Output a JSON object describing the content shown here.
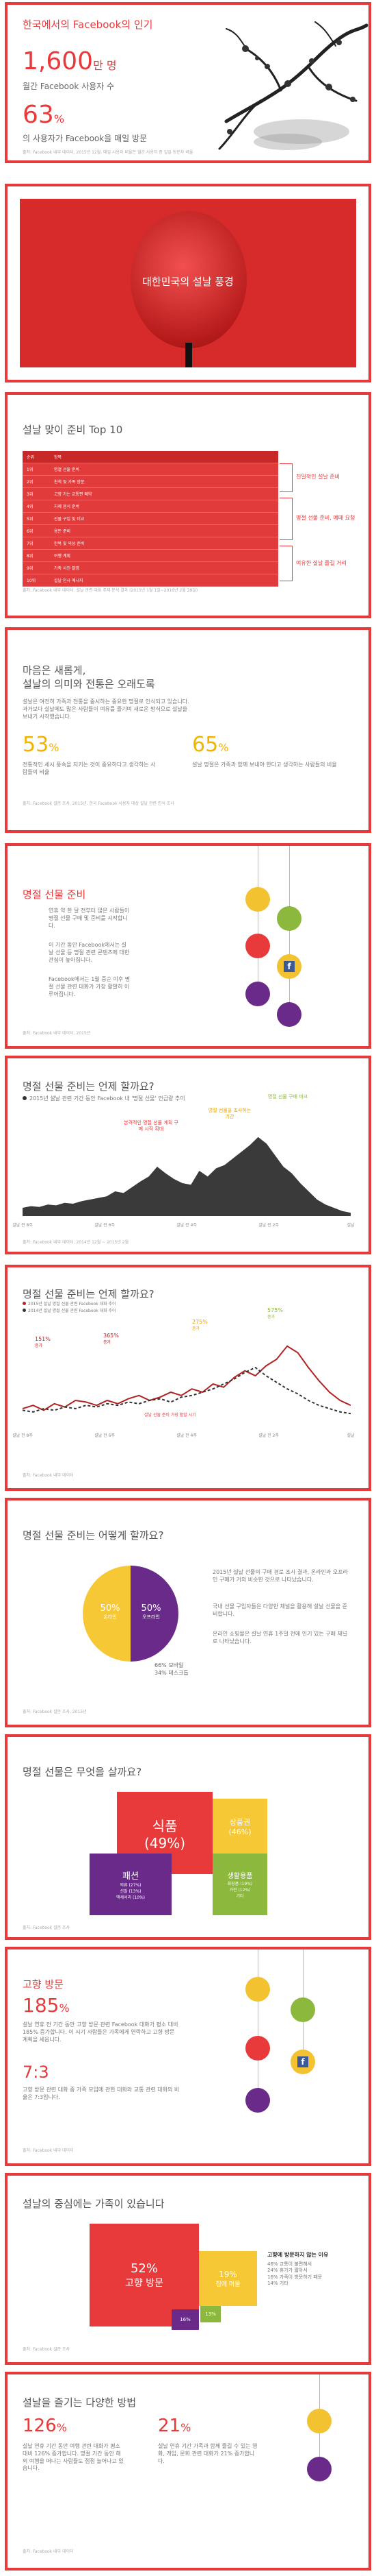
{
  "p1": {
    "title": "한국에서의 Facebook의 인기",
    "stat1_num": "1,600",
    "stat1_unit": "만 명",
    "stat1_label": "월간 Facebook 사용자 수",
    "stat2_num": "63",
    "stat2_unit": "%",
    "stat2_label": "의 사용자가 Facebook을 매일 방문",
    "source": "출처: Facebook 내부 데이터, 2015년 12월. 매일 사용자 비율은 월간 사용자 중 일일 방문자 비율"
  },
  "p2": {
    "title": "대한민국의 설날 풍경"
  },
  "p3": {
    "title": "설날 맞이 준비 Top 10",
    "head": [
      "순위",
      "항목"
    ],
    "rows": [
      [
        "1위",
        "명절 선물 준비"
      ],
      [
        "2위",
        "친척 및 가족 방문"
      ],
      [
        "3위",
        "고향 가는 교통편 예약"
      ],
      [
        "4위",
        "차례 음식 준비"
      ],
      [
        "5위",
        "선물 구입 및 비교"
      ],
      [
        "6위",
        "용돈 준비"
      ],
      [
        "7위",
        "한복 및 의상 준비"
      ],
      [
        "8위",
        "여행 계획"
      ],
      [
        "9위",
        "가족 사진 촬영"
      ],
      [
        "10위",
        "설날 인사 메시지"
      ]
    ],
    "tags": [
      "친밀적인 설날 준비",
      "명절 선물 준비, 예매 요청",
      "여유한 설날 즐길 거리"
    ],
    "source": "출처: Facebook 내부 데이터. 설날 관련 대화 주제 분석 결과 (2015년 1월 1일~2016년 2월 28일)"
  },
  "p4": {
    "title1": "마음은 새롭게,",
    "title2": "설날의 의미와 전통은 오래도록",
    "body": "설날은 여전히 가족과 전통을 중시하는 중요한 명절로 인식되고 있습니다. 과거보다 설날에도 많은 사람들이 여유를 즐기며 새로운 방식으로 설날을 보내기 시작했습니다.",
    "stat1_num": "53",
    "stat1_unit": "%",
    "stat1_label": "전통적인 세시 풍속을 지키는 것이 중요하다고 생각하는 사람들의 비율",
    "stat2_num": "65",
    "stat2_unit": "%",
    "stat2_label": "설날 명절은 가족과 함께 보내야 한다고 생각하는 사람들의 비율",
    "source": "출처: Facebook 설문 조사, 2015년. 한국 Facebook 사용자 대상 설날 관련 인식 조사"
  },
  "p5": {
    "title": "명절 선물 준비",
    "body1": "연휴 약 한 달 전부터 많은 사람들이 명절 선물 구매 및 준비를 시작합니다.",
    "body2": "이 기간 동안 Facebook에서는 설날 선물 등 명절 관련 콘텐츠에 대한 관심이 높아집니다.",
    "body3": "Facebook에서는 1월 중순 이후 명절 선물 관련 대화가 가장 활발히 이루어집니다.",
    "source": "출처: Facebook 내부 데이터, 2015년"
  },
  "p6": {
    "title": "명절 선물 준비는 언제 할까요?",
    "legend": "2015년 설날 관련 기간 동안 Facebook 내 '명절 선물' 언급량 추이",
    "ann1": "본격적인 명절 선물 계획 구매 시작 확대",
    "ann2": "명절 선물을 조사하는 기간",
    "ann3": "명절 선물 구매 피크",
    "chart_data": {
      "type": "area",
      "y": [
        10,
        12,
        11,
        14,
        13,
        16,
        15,
        18,
        20,
        22,
        24,
        30,
        28,
        35,
        42,
        48,
        60,
        52,
        45,
        40,
        38,
        55,
        48,
        58,
        62,
        70,
        78,
        86,
        96,
        88,
        74,
        60,
        52,
        40,
        30,
        20,
        14,
        10,
        6,
        4
      ],
      "ticks": [
        "설날 전 8주",
        "설날 전 6주",
        "설날 전 4주",
        "설날 전 2주",
        "설날"
      ]
    },
    "source": "출처: Facebook 내부 데이터, 2014년 12월 ~ 2015년 2월"
  },
  "p7": {
    "title": "명절 선물 준비는 언제 할까요?",
    "legend1": "2015년 설날 명절 선물 관련 Facebook 대화 추이",
    "legend2": "2014년 설날 명절 선물 관련 Facebook 대화 추이",
    "ann1_pct": "151%",
    "ann1_txt": "증가",
    "ann2_pct": "365%",
    "ann2_txt": "증가",
    "ann3_pct": "275%",
    "ann3_txt": "증가",
    "ann4_pct": "575%",
    "ann4_txt": "증가",
    "mid_note": "설날 선물 준비 가장 활발 시기",
    "chart_data": {
      "type": "line",
      "series": [
        {
          "values": [
            20,
            24,
            18,
            26,
            22,
            30,
            28,
            24,
            30,
            26,
            32,
            36,
            30,
            34,
            40,
            36,
            44,
            40,
            50,
            46,
            58,
            66,
            60,
            72,
            80,
            96,
            88,
            70,
            54,
            40,
            30,
            24
          ]
        },
        {
          "values": [
            18,
            16,
            20,
            18,
            22,
            20,
            24,
            22,
            26,
            24,
            28,
            26,
            30,
            32,
            28,
            34,
            36,
            40,
            44,
            50,
            56,
            64,
            70,
            60,
            52,
            44,
            38,
            30,
            24,
            20,
            16,
            14
          ]
        }
      ],
      "ticks": [
        "설날 전 8주",
        "설날 전 6주",
        "설날 전 4주",
        "설날 전 2주",
        "설날"
      ]
    },
    "source": "출처: Facebook 내부 데이터"
  },
  "p8": {
    "title": "명절 선물 준비는 어떻게 할까요?",
    "left_pct": "50%",
    "left_lbl": "온라인",
    "right_pct": "50%",
    "right_lbl": "오프라인",
    "note": "66% 모바일\n34% 데스크톱",
    "body1": "2015년 설날 선물의 구매 경로 조사 결과, 온라인과 오프라인 구매가 거의 비슷한 것으로 나타났습니다.",
    "body2": "국내 선물 구입자들은 다양한 채널을 활용해 설날 선물을 준비합니다.",
    "body3": "온라인 쇼핑몰은 설날 연휴 1주일 전에 인기 있는 구매 채널로 나타났습니다.",
    "source": "출처: Facebook 설문 조사, 2015년"
  },
  "p9": {
    "title": "명절 선물은 무엇을 살까요?",
    "c_main": "식품",
    "c_main_pct": "(49%)",
    "c_right": "상품권",
    "c_right_pct": "(46%)",
    "c_left": "패션",
    "c_left_sub": "의류 (27%)\n신발 (13%)\n액세서리 (10%)",
    "c_right2": "생활용품",
    "c_right2_sub": "화장품 (19%)\n가전 (12%)\n기타",
    "source": "출처: Facebook 설문 조사"
  },
  "p10": {
    "title": "고향 방문",
    "stat1_num": "185",
    "stat1_unit": "%",
    "stat1_body": "설날 연휴 전 기간 동안 고향 방문 관련 Facebook 대화가 평소 대비 185% 증가합니다. 이 시기 사람들은 가족에게 연락하고 고향 방문 계획을 세웁니다.",
    "stat2_num": "7:3",
    "stat2_body": "고향 방문 관련 대화 중 가족 모임에 관한 대화와 교통 관련 대화의 비율은 7:3입니다.",
    "source": "출처: Facebook 내부 데이터"
  },
  "p11": {
    "title": "설날의 중심에는 가족이 있습니다",
    "big_pct": "52%",
    "big_lbl": "고향 방문",
    "mid_pct": "19%",
    "mid_lbl": "집에 머물",
    "s1": "16%",
    "s2": "13%",
    "side_title": "고향에 방문하지 않는 이유",
    "side_body": "46% 교통이 불편해서\n24% 휴가가 짧아서\n16% 가족이 방문하기 때문\n14% 기타",
    "source": "출처: Facebook 설문 조사"
  },
  "p12": {
    "title": "설날을 즐기는 다양한 방법",
    "stat1_num": "126",
    "stat1_unit": "%",
    "stat1_body": "설날 연휴 기간 동안 여행 관련 대화가 평소 대비 126% 증가합니다. 명절 기간 동안 해외 여행을 떠나는 사람들도 점점 늘어나고 있습니다.",
    "stat2_num": "21",
    "stat2_unit": "%",
    "stat2_body": "설날 연휴 기간 가족과 함께 즐길 수 있는 영화, 게임, 문화 관련 대화가 21% 증가합니다.",
    "source": "출처: Facebook 내부 데이터"
  }
}
